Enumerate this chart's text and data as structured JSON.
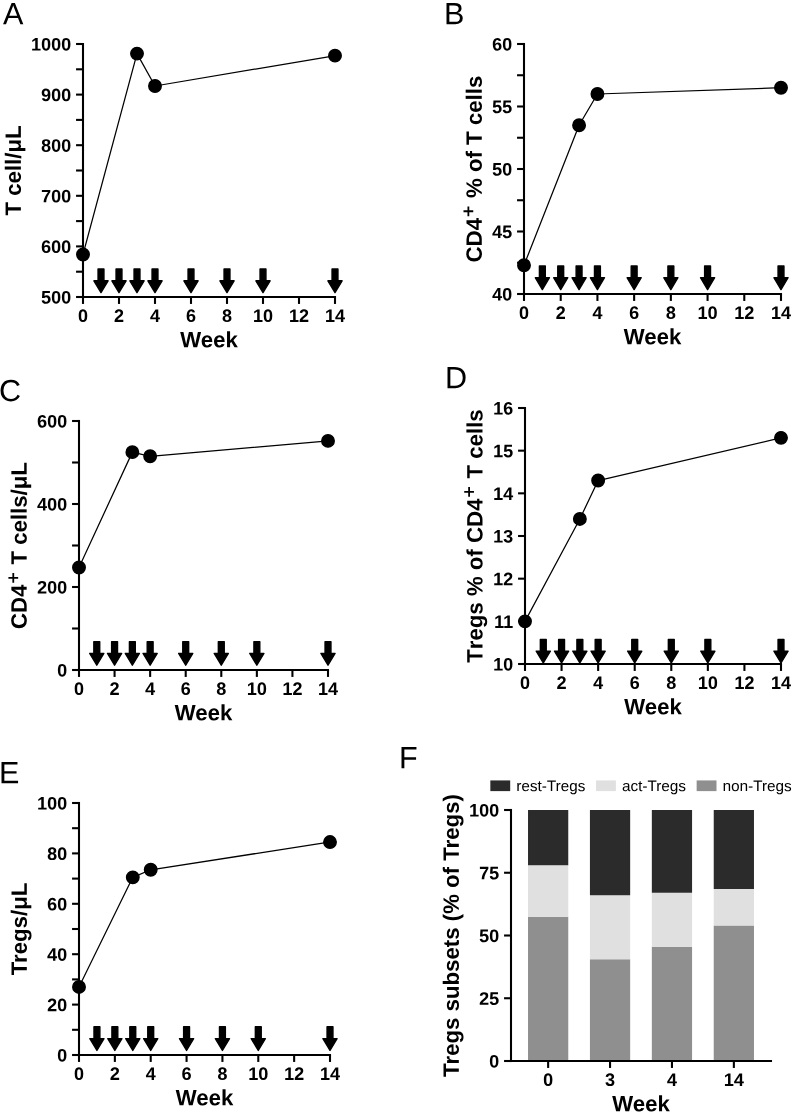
{
  "chart_data": [
    {
      "type": "line",
      "title": "A",
      "xlabel": "Week",
      "ylabel": "T cell/μL",
      "xlim": [
        0,
        14
      ],
      "xticks": [
        0,
        2,
        4,
        6,
        8,
        10,
        12,
        14
      ],
      "ylim": [
        500,
        1000
      ],
      "yticks": [
        500,
        {
          "value": 550,
          "label": null
        },
        600,
        {
          "value": 650,
          "label": null
        },
        700,
        {
          "value": 750,
          "label": null
        },
        800,
        {
          "value": 850,
          "label": null
        },
        900,
        {
          "value": 950,
          "label": null
        },
        1000
      ],
      "marker": "circle",
      "legend": false,
      "grid": false,
      "series": [
        {
          "type": "line",
          "color": "#000000",
          "x": [
            0,
            3,
            4,
            14
          ],
          "values": [
            584,
            981,
            917,
            977
          ]
        },
        {
          "type": "scatter",
          "marker": "triangle",
          "color": "#000000",
          "x": [
            1,
            2,
            3,
            4,
            6,
            8,
            10,
            14
          ],
          "values": [
            532,
            532,
            532,
            532,
            532,
            532,
            532,
            532
          ]
        }
      ]
    },
    {
      "type": "line",
      "title": "B",
      "xlabel": "Week",
      "ylabel": "CD4$^{+}$ % of T cells",
      "xlim": [
        0,
        14
      ],
      "xticks": [
        0,
        2,
        4,
        6,
        8,
        10,
        12,
        14
      ],
      "ylim": [
        40,
        60
      ],
      "yticks": [
        40,
        {
          "value": 42.5,
          "label": null
        },
        45,
        {
          "value": 47.5,
          "label": null
        },
        50,
        {
          "value": 52.5,
          "label": null
        },
        55,
        {
          "value": 57.5,
          "label": null
        },
        60
      ],
      "marker": "circle",
      "legend": false,
      "grid": false,
      "series": [
        {
          "type": "line",
          "color": "#000000",
          "x": [
            0,
            3,
            4,
            14
          ],
          "values": [
            42.3,
            53.5,
            56,
            56.5
          ]
        },
        {
          "type": "scatter",
          "marker": "triangle",
          "color": "#000000",
          "x": [
            1,
            2,
            3,
            4,
            6,
            8,
            10,
            14
          ],
          "values": [
            41.3,
            41.3,
            41.3,
            41.3,
            41.3,
            41.3,
            41.3,
            41.3
          ]
        }
      ]
    },
    {
      "type": "line",
      "title": "C",
      "xlabel": "Week",
      "ylabel": "CD4$^{+}$ T cells/μL",
      "xlim": [
        0,
        14
      ],
      "xticks": [
        0,
        2,
        4,
        6,
        8,
        10,
        12,
        14
      ],
      "ylim": [
        0,
        600
      ],
      "yticks": [
        0,
        {
          "value": 100,
          "label": null
        },
        200,
        {
          "value": 300,
          "label": null
        },
        400,
        {
          "value": 500,
          "label": null
        },
        600
      ],
      "marker": "circle",
      "legend": false,
      "grid": false,
      "series": [
        {
          "type": "line",
          "color": "#000000",
          "x": [
            0,
            3,
            4,
            14
          ],
          "values": [
            247,
            525,
            515,
            552
          ]
        },
        {
          "type": "scatter",
          "marker": "triangle",
          "color": "#000000",
          "x": [
            1,
            2,
            3,
            4,
            6,
            8,
            10,
            14
          ],
          "values": [
            40,
            40,
            40,
            40,
            40,
            40,
            40,
            40
          ]
        }
      ]
    },
    {
      "type": "line",
      "title": "D",
      "xlabel": "Week",
      "ylabel": "Tregs % of CD4$^{+}$ T cells",
      "xlim": [
        0,
        14
      ],
      "xticks": [
        0,
        2,
        4,
        6,
        8,
        10,
        12,
        14
      ],
      "ylim": [
        10,
        16
      ],
      "yticks": [
        10,
        11,
        12,
        13,
        14,
        15,
        16
      ],
      "marker": "circle",
      "legend": false,
      "grid": false,
      "series": [
        {
          "type": "line",
          "color": "#000000",
          "x": [
            0,
            3,
            4,
            14
          ],
          "values": [
            11,
            13.4,
            14.3,
            15.3
          ]
        },
        {
          "type": "scatter",
          "marker": "triangle",
          "color": "#000000",
          "x": [
            1,
            2,
            3,
            4,
            6,
            8,
            10,
            14
          ],
          "values": [
            10.3,
            10.3,
            10.3,
            10.3,
            10.3,
            10.3,
            10.3,
            10.3
          ]
        }
      ]
    },
    {
      "type": "line",
      "title": "E",
      "xlabel": "Week",
      "ylabel": "Tregs/μL",
      "xlim": [
        0,
        14
      ],
      "xticks": [
        0,
        2,
        4,
        6,
        8,
        10,
        12,
        14
      ],
      "ylim": [
        0,
        100
      ],
      "yticks": [
        0,
        {
          "value": 10,
          "label": null
        },
        20,
        {
          "value": 30,
          "label": null
        },
        40,
        {
          "value": 50,
          "label": null
        },
        60,
        {
          "value": 70,
          "label": null
        },
        80,
        {
          "value": 90,
          "label": null
        },
        100
      ],
      "marker": "circle",
      "legend": false,
      "grid": false,
      "series": [
        {
          "type": "line",
          "color": "#000000",
          "x": [
            0,
            3,
            4,
            14
          ],
          "values": [
            27,
            70.5,
            73.5,
            84.5
          ]
        },
        {
          "type": "scatter",
          "marker": "triangle",
          "color": "#000000",
          "x": [
            1,
            2,
            3,
            4,
            6,
            8,
            10,
            14
          ],
          "values": [
            6.5,
            6.5,
            6.5,
            6.5,
            6.5,
            6.5,
            6.5,
            6.5
          ]
        }
      ]
    },
    {
      "type": "bar",
      "title": "F",
      "xlabel": "Week",
      "ylabel": "Tregs subsets (% of Tregs)",
      "categories": [
        "0",
        "3",
        "4",
        "14"
      ],
      "stacked": true,
      "ylim": [
        0,
        100
      ],
      "yticks": [
        0,
        25,
        50,
        75,
        100
      ],
      "legend": "top",
      "grid": false,
      "series": [
        {
          "name": "non-Tregs",
          "color": "#8f8f8f",
          "values": [
            57.5,
            40.5,
            45.5,
            54
          ]
        },
        {
          "name": "act-Tregs",
          "color": "#e0e0e0",
          "values": [
            20.5,
            25.5,
            21.5,
            14.5
          ]
        },
        {
          "name": "rest-Tregs",
          "color": "#2b2b2b",
          "values": [
            22,
            34,
            33,
            31.5
          ]
        }
      ]
    }
  ]
}
